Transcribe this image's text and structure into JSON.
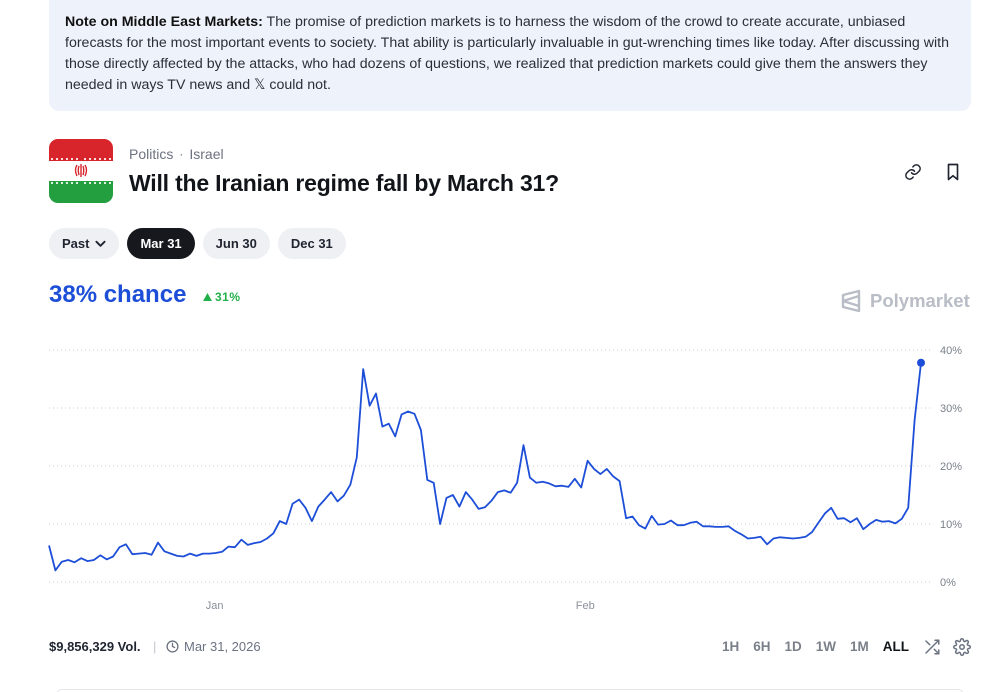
{
  "note": {
    "label": "Note on Middle East Markets:",
    "text": " The promise of prediction markets is to harness the wisdom of the crowd to create accurate, unbiased forecasts for the most important events to society. That ability is particularly invaluable in gut-wrenching times like today. After discussing with those directly affected by the attacks, who had dozens of questions, we realized that prediction markets could give them the answers they needed in ways TV news and 𝕏 could not."
  },
  "market": {
    "category": "Politics",
    "subcategory": "Israel",
    "title": "Will the Iranian regime fall by March 31?",
    "flag_icon": "iran-flag-icon",
    "flag_colors": {
      "top": "#d8242b",
      "middle": "#ffffff",
      "bottom": "#239f40",
      "emblem": "#d8242b"
    }
  },
  "actions": {
    "link_icon": "link-icon",
    "bookmark_icon": "bookmark-icon"
  },
  "date_tabs": [
    {
      "label": "Past",
      "has_dropdown": true,
      "active": false
    },
    {
      "label": "Mar 31",
      "active": true
    },
    {
      "label": "Jun 30",
      "active": false
    },
    {
      "label": "Dec 31",
      "active": false
    }
  ],
  "odds": {
    "chance": "38% chance",
    "delta": "31%",
    "delta_direction": "up"
  },
  "brand": {
    "name": "Polymarket",
    "icon": "polymarket-logo-icon"
  },
  "chart_data": {
    "type": "line",
    "title": "",
    "xlabel": "",
    "ylabel": "",
    "ylim": [
      0,
      40
    ],
    "y_ticks": [
      "0%",
      "10%",
      "20%",
      "30%",
      "40%"
    ],
    "x_ticks": [
      {
        "label": "Jan",
        "t": 0.19
      },
      {
        "label": "Feb",
        "t": 0.615
      }
    ],
    "grid": true,
    "line_color": "#1d4ed8",
    "series": [
      {
        "values": [
          6.3,
          2.0,
          3.5,
          3.8,
          3.4,
          4.1,
          3.6,
          3.8,
          4.6,
          3.9,
          4.4,
          6.0,
          6.5,
          4.8,
          4.9,
          5.0,
          4.7,
          6.8,
          5.3,
          4.9,
          4.5,
          4.4,
          4.9,
          4.5,
          4.9,
          4.9,
          5.0,
          5.2,
          6.1,
          6.0,
          7.3,
          6.4,
          6.7,
          6.9,
          7.5,
          8.4,
          10.5,
          10.0,
          13.5,
          14.2,
          12.8,
          10.5,
          13.0,
          14.2,
          15.5,
          13.9,
          14.9,
          16.8,
          21.5,
          36.7,
          30.4,
          32.5,
          26.8,
          27.3,
          25.1,
          28.9,
          29.4,
          29.0,
          26.2,
          17.6,
          17.1,
          10.0,
          14.5,
          15.0,
          13.0,
          15.5,
          14.2,
          12.6,
          12.9,
          14.0,
          15.5,
          15.8,
          15.4,
          17.1,
          23.6,
          18.0,
          17.1,
          17.3,
          17.0,
          16.5,
          16.6,
          16.4,
          17.8,
          16.3,
          20.9,
          19.5,
          18.6,
          19.5,
          18.2,
          17.4,
          11.0,
          11.3,
          9.8,
          9.2,
          11.4,
          9.9,
          10.0,
          10.6,
          9.8,
          9.8,
          10.2,
          10.4,
          9.6,
          9.6,
          9.5,
          9.5,
          9.6,
          8.8,
          8.2,
          7.5,
          7.6,
          7.8,
          6.5,
          7.5,
          7.7,
          7.6,
          7.5,
          7.6,
          7.8,
          8.6,
          10.2,
          11.8,
          12.8,
          10.9,
          11.0,
          10.3,
          11.0,
          9.1,
          10.0,
          10.7,
          10.4,
          10.5,
          10.1,
          10.9,
          12.8,
          27.9,
          37.8
        ]
      }
    ]
  },
  "footer": {
    "volume": "$9,856,329 Vol.",
    "separator": "|",
    "end_date": "Mar 31, 2026",
    "clock_icon": "clock-icon",
    "ranges": [
      {
        "label": "1H",
        "active": false
      },
      {
        "label": "6H",
        "active": false
      },
      {
        "label": "1D",
        "active": false
      },
      {
        "label": "1W",
        "active": false
      },
      {
        "label": "1M",
        "active": false
      },
      {
        "label": "ALL",
        "active": true
      }
    ],
    "shuffle_icon": "shuffle-icon",
    "settings_icon": "gear-icon"
  }
}
